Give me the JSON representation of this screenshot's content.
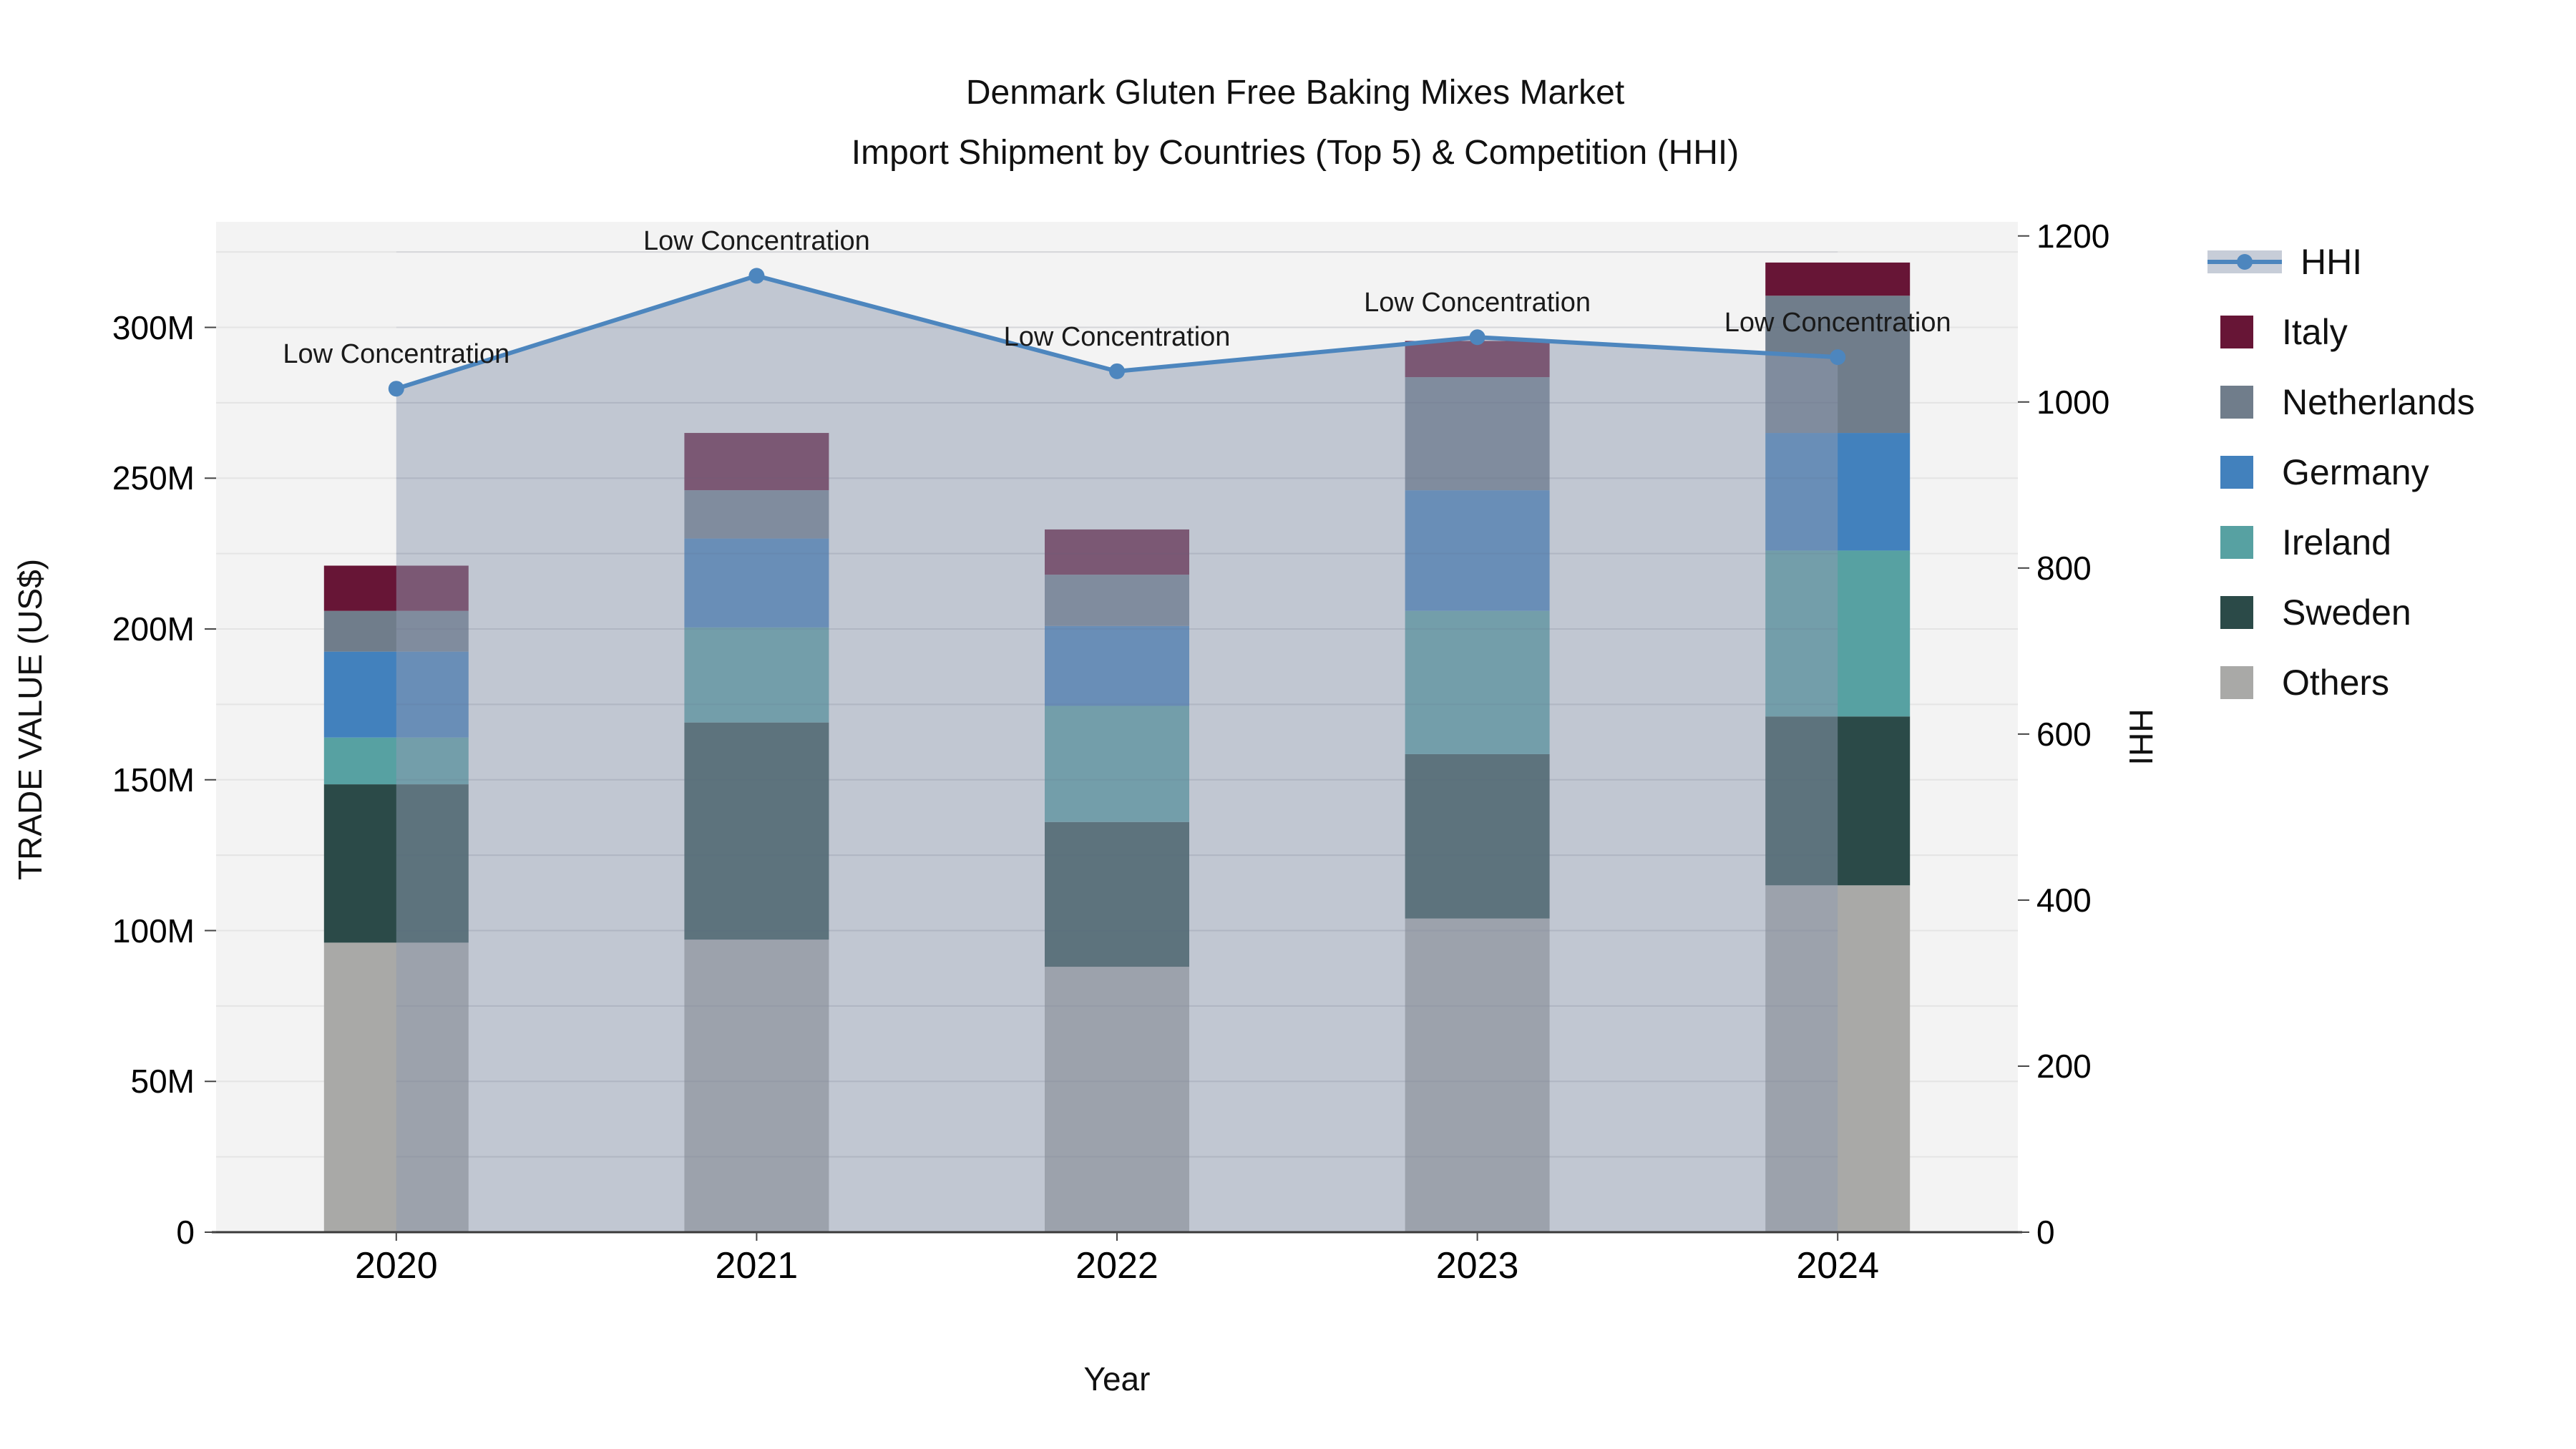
{
  "title": {
    "line1": "Denmark Gluten Free Baking Mixes Market",
    "line2": "Import Shipment by Countries (Top 5) & Competition (HHI)"
  },
  "axes": {
    "x_title": "Year",
    "y_left_title": "TRADE VALUE (US$)",
    "y_right_title": "HHI",
    "y_left_tick_labels": [
      "0",
      "50M",
      "100M",
      "150M",
      "200M",
      "250M",
      "300M"
    ],
    "y_left_tick_values": [
      0,
      50,
      100,
      150,
      200,
      250,
      300
    ],
    "y_right_tick_labels": [
      "0",
      "200",
      "400",
      "600",
      "800",
      "1000",
      "1200"
    ],
    "y_right_tick_values": [
      0,
      200,
      400,
      600,
      800,
      1000,
      1200
    ]
  },
  "chart_data": {
    "type": "bar",
    "subtype": "stacked-bars-with-line",
    "title": "Denmark Gluten Free Baking Mixes Market Import Shipment by Countries (Top 5) & Competition (HHI)",
    "xlabel": "Year",
    "ylabel_left": "TRADE VALUE (US$)",
    "ylabel_right": "HHI",
    "categories": [
      "2020",
      "2021",
      "2022",
      "2023",
      "2024"
    ],
    "value_unit": "Million US$",
    "ylim_left": [
      0,
      335
    ],
    "ylim_right": [
      0,
      1217
    ],
    "grid": "on",
    "legend_position": "right",
    "series": [
      {
        "name": "Others",
        "color": "#a9a9a7",
        "values": [
          96,
          97,
          88,
          104,
          115
        ]
      },
      {
        "name": "Sweden",
        "color": "#2b4a48",
        "values": [
          52.5,
          72,
          48,
          54.5,
          56
        ]
      },
      {
        "name": "Ireland",
        "color": "#57a1a2",
        "values": [
          15.5,
          31.5,
          38.5,
          47.5,
          55
        ]
      },
      {
        "name": "Germany",
        "color": "#4281bd",
        "values": [
          28.5,
          29.5,
          26.5,
          40,
          39
        ]
      },
      {
        "name": "Netherlands",
        "color": "#707d8b",
        "values": [
          13.5,
          16,
          17,
          37.5,
          45.5
        ]
      },
      {
        "name": "Italy",
        "color": "#671536",
        "values": [
          15,
          19,
          15,
          12,
          11
        ]
      }
    ],
    "line_series": {
      "name": "HHI",
      "color": "#4d86be",
      "fill_color": "rgba(144,156,178,0.5)",
      "values": [
        1016,
        1152,
        1037,
        1078,
        1054
      ]
    },
    "annotations": [
      {
        "category": "2020",
        "text": "Low Concentration"
      },
      {
        "category": "2021",
        "text": "Low Concentration"
      },
      {
        "category": "2022",
        "text": "Low Concentration"
      },
      {
        "category": "2023",
        "text": "Low Concentration"
      },
      {
        "category": "2024",
        "text": "Low Concentration"
      }
    ]
  },
  "legend": {
    "items": [
      "HHI",
      "Italy",
      "Netherlands",
      "Germany",
      "Ireland",
      "Sweden",
      "Others"
    ]
  },
  "colors": {
    "plot_background": "#f3f3f3",
    "gridline": "#e4e4e4",
    "axis_line": "#3a3a3a",
    "text": "#111111"
  }
}
